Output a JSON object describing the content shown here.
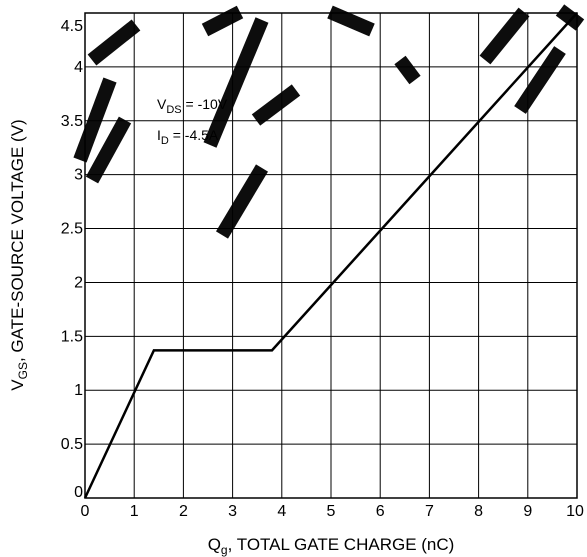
{
  "chart_data": {
    "type": "line",
    "xlabel": {
      "main": "Q",
      "sub": "g",
      "rest": ", TOTAL GATE CHARGE (nC)"
    },
    "ylabel": {
      "main": "V",
      "sub": "GS",
      "rest": ", GATE-SOURCE VOLTAGE (V)"
    },
    "xlim": [
      0,
      10
    ],
    "ylim": [
      0,
      4.5
    ],
    "x_ticks": [
      "0",
      "1",
      "2",
      "3",
      "4",
      "5",
      "6",
      "7",
      "8",
      "9",
      "10"
    ],
    "y_ticks": [
      "0",
      "0.5",
      "1",
      "1.5",
      "2",
      "2.5",
      "3",
      "3.5",
      "4",
      "4.5"
    ],
    "grid": true,
    "series": [
      {
        "x": [
          0,
          1.4,
          3.8,
          10
        ],
        "y": [
          0,
          1.37,
          1.37,
          4.5
        ]
      }
    ],
    "annotations": [
      {
        "main": "V",
        "sub": "DS",
        "rest": " = -10V"
      },
      {
        "main": "I",
        "sub": "D",
        "rest": " = -4.5A"
      }
    ]
  }
}
